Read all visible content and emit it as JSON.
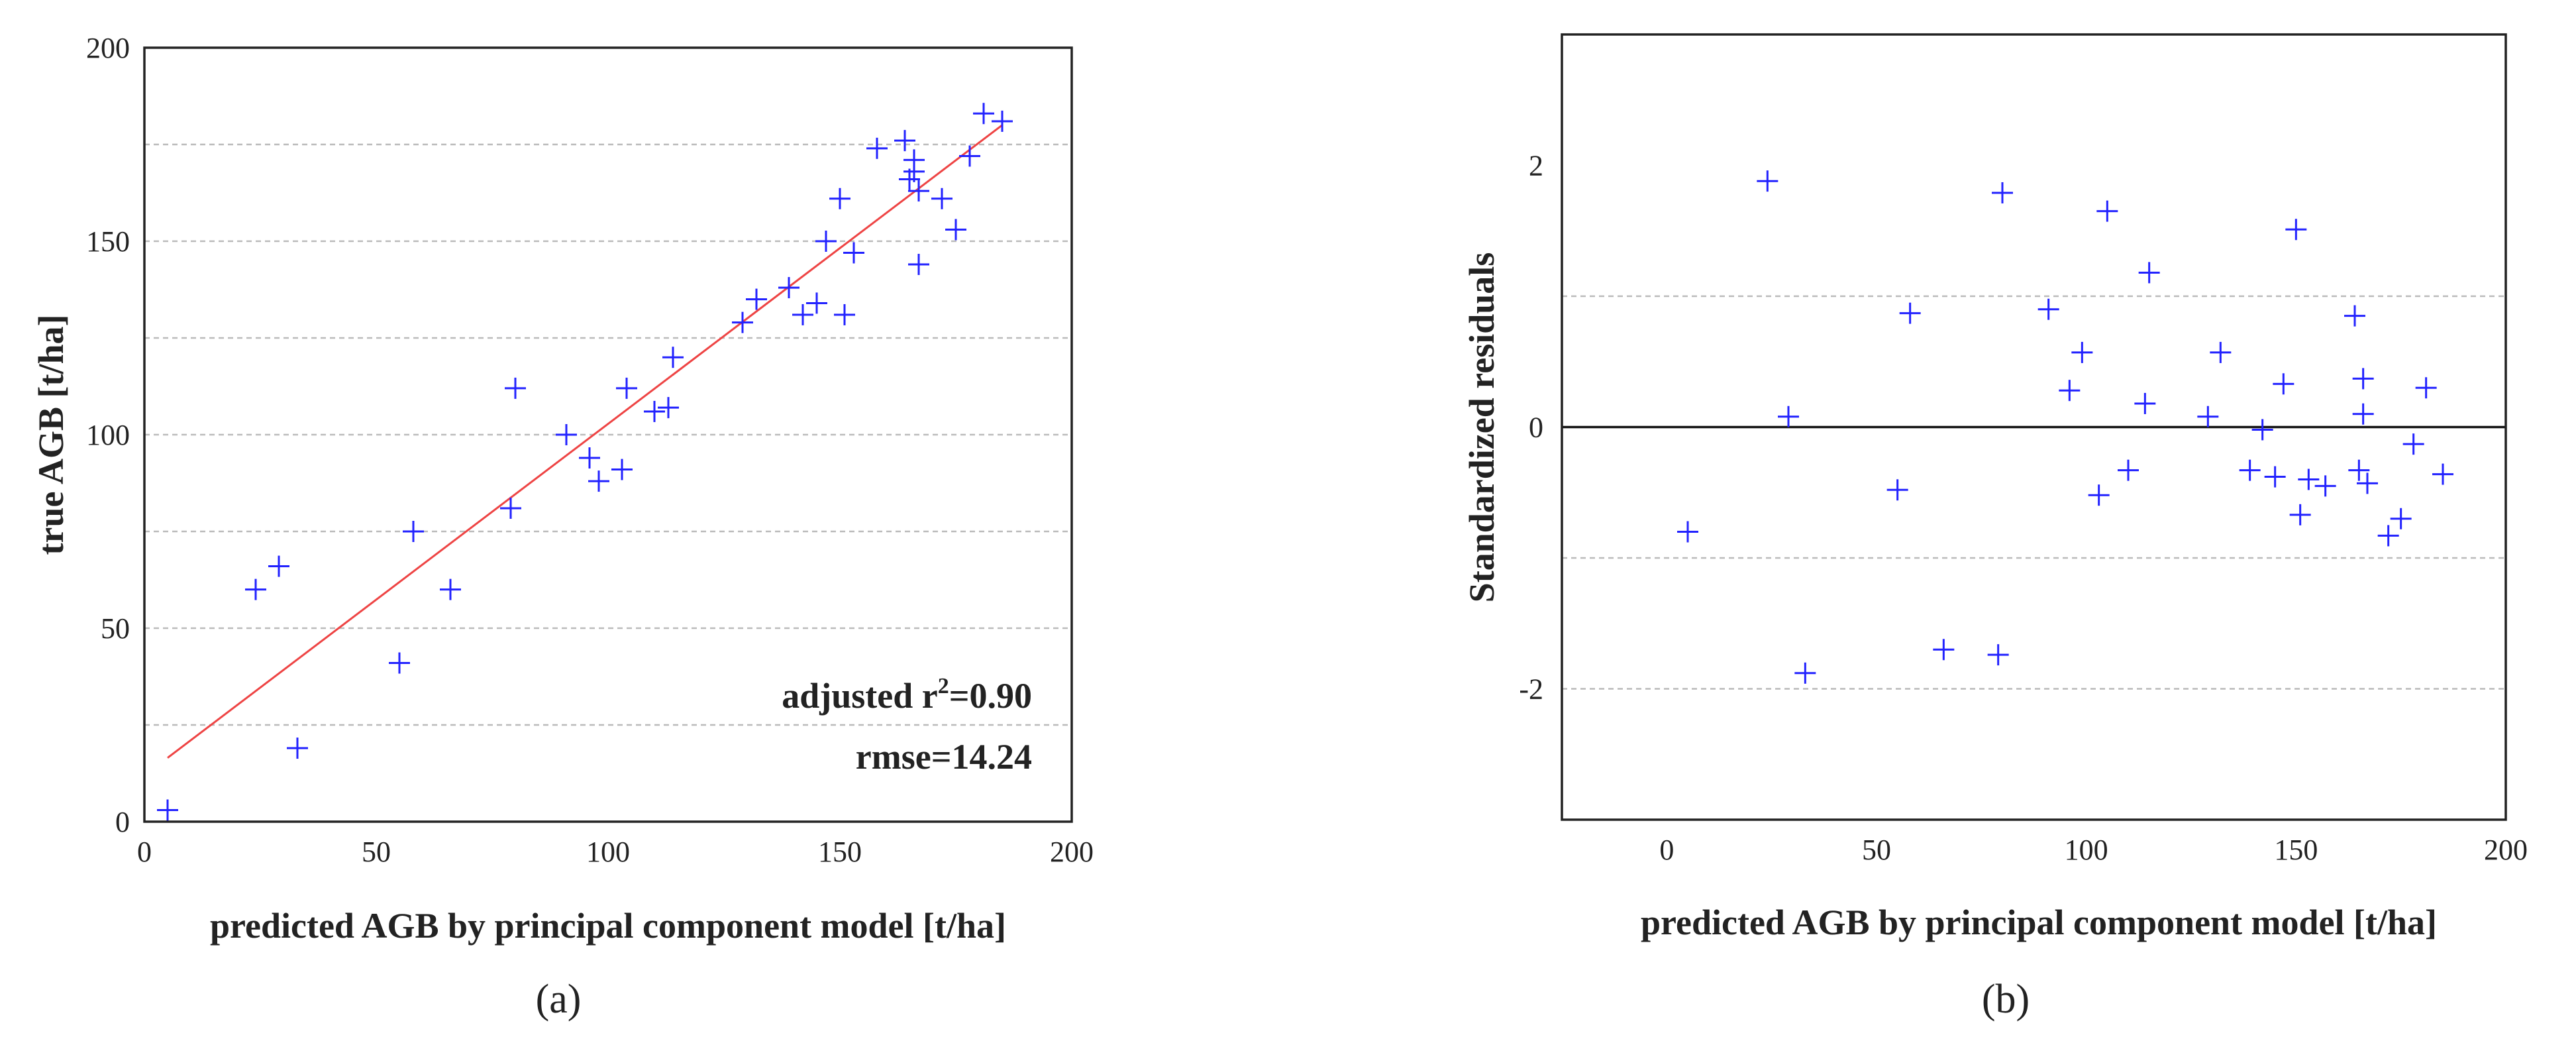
{
  "chart_data": [
    {
      "type": "scatter",
      "panel_label": "(a)",
      "xlabel": "predicted AGB by principal component model [t/ha]",
      "ylabel": "true AGB [t/ha]",
      "xlim": [
        0,
        200
      ],
      "ylim": [
        0,
        200
      ],
      "xticks": [
        0,
        50,
        100,
        150,
        200
      ],
      "yticks": [
        0,
        50,
        100,
        150,
        200
      ],
      "grid": "horizontal dashed",
      "annotations": {
        "r2_prefix": "adjusted r",
        "r2_sup": "2",
        "r2_value": "=0.90",
        "rmse": "rmse=14.24"
      },
      "fit_line": {
        "x": [
          5,
          185
        ],
        "y": [
          16.5,
          180
        ]
      },
      "series": [
        {
          "name": "observations",
          "marker": "+",
          "color": "#2222ff",
          "x": [
            5,
            24,
            29,
            33,
            55,
            58,
            66,
            79,
            80,
            91,
            96,
            98,
            103,
            104,
            110,
            113,
            114,
            129,
            132,
            139,
            142,
            145,
            147,
            150,
            151,
            153,
            158,
            164,
            165,
            166,
            166,
            167,
            167,
            172,
            175,
            178,
            181,
            185
          ],
          "y": [
            3,
            60,
            66,
            19,
            41,
            75,
            60,
            81,
            112,
            100,
            94,
            88,
            91,
            112,
            106,
            107,
            120,
            129,
            135,
            138,
            131,
            134,
            150,
            161,
            131,
            147,
            174,
            176,
            166,
            168,
            171,
            163,
            144,
            161,
            153,
            172,
            183,
            181
          ]
        }
      ]
    },
    {
      "type": "scatter",
      "panel_label": "(b)",
      "xlabel": "predicted AGB by principal component model [t/ha]",
      "ylabel": "Standardized residuals",
      "xlim": [
        -25,
        200
      ],
      "ylim": [
        -3,
        3
      ],
      "xticks": [
        0,
        50,
        100,
        150,
        200
      ],
      "yticks": [
        -2,
        0,
        2
      ],
      "grid": "horizontal dashed at -2, -1, 1",
      "reference_line": 0,
      "series": [
        {
          "name": "residuals",
          "marker": "+",
          "color": "#2222ff",
          "x": [
            5,
            24,
            29,
            33,
            55,
            58,
            66,
            79,
            80,
            91,
            96,
            99,
            103,
            105,
            110,
            114,
            115,
            129,
            132,
            139,
            142,
            145,
            147,
            150,
            151,
            153,
            157,
            164,
            165,
            166,
            166,
            167,
            172,
            175,
            178,
            181,
            185
          ],
          "y": [
            -0.8,
            1.88,
            0.08,
            -1.88,
            -0.48,
            0.87,
            -1.7,
            -1.74,
            1.79,
            0.9,
            0.28,
            0.57,
            -0.52,
            1.65,
            -0.33,
            0.18,
            1.18,
            0.08,
            0.57,
            -0.33,
            -0.02,
            -0.38,
            0.33,
            1.51,
            -0.67,
            -0.4,
            -0.45,
            0.85,
            -0.33,
            0.1,
            0.37,
            -0.43,
            -0.83,
            -0.7,
            -0.13,
            0.3,
            -0.36
          ]
        }
      ]
    }
  ]
}
